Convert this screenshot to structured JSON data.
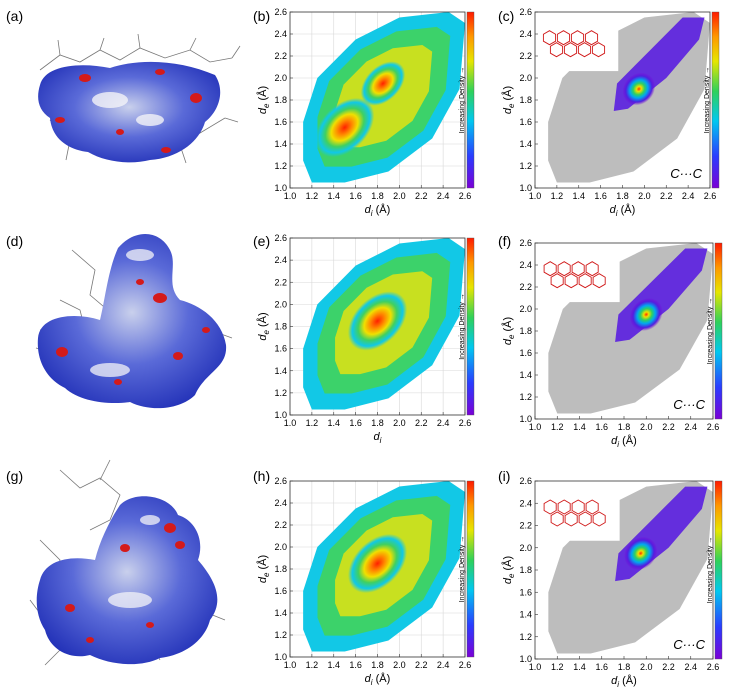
{
  "figure": {
    "panel_labels": [
      "(a)",
      "(b)",
      "(c)",
      "(d)",
      "(e)",
      "(f)",
      "(g)",
      "(h)",
      "(i)"
    ],
    "surface_panels": [
      {
        "label_index": 0,
        "name": "hirshfeld-surface-a"
      },
      {
        "label_index": 3,
        "name": "hirshfeld-surface-d"
      },
      {
        "label_index": 6,
        "name": "hirshfeld-surface-g"
      }
    ],
    "colors": {
      "surface_blue": "#2f3fd0",
      "surface_white": "#e8ecf4",
      "surface_red": "#d41a1a",
      "grey_background": "#bdbdbd",
      "molecule_red": "#d01818"
    }
  },
  "chart_data": [
    {
      "type": "heatmap",
      "panel": "(b)",
      "xlabel_main": "d",
      "xlabel_sub": "i",
      "xlabel_unit": " (Å)",
      "ylabel_main": "d",
      "ylabel_sub": "e",
      "ylabel_unit": " (Å)",
      "xlim": [
        1.0,
        2.6
      ],
      "ylim": [
        1.0,
        2.6
      ],
      "xticks": [
        "1.0",
        "1.2",
        "1.4",
        "1.6",
        "1.8",
        "2.0",
        "2.2",
        "2.4",
        "2.6"
      ],
      "yticks": [
        "1.0",
        "1.2",
        "1.4",
        "1.6",
        "1.8",
        "2.0",
        "2.2",
        "2.4",
        "2.6"
      ],
      "grid": true,
      "colorbar_label": "Increasing Density →",
      "density_peaks": [
        {
          "x": 1.5,
          "y": 1.55,
          "level": 1.0
        },
        {
          "x": 1.85,
          "y": 1.95,
          "level": 0.75
        }
      ],
      "highlight": null
    },
    {
      "type": "heatmap",
      "panel": "(c)",
      "xlabel_main": "d",
      "xlabel_sub": "i",
      "xlabel_unit": " (Å)",
      "ylabel_main": "d",
      "ylabel_sub": "e",
      "ylabel_unit": " (Å)",
      "xlim": [
        1.0,
        2.6
      ],
      "ylim": [
        1.0,
        2.6
      ],
      "xticks": [
        "1.0",
        "1.2",
        "1.4",
        "1.6",
        "1.8",
        "2.0",
        "2.2",
        "2.4",
        "2.6"
      ],
      "yticks": [
        "1.0",
        "1.2",
        "1.4",
        "1.6",
        "1.8",
        "2.0",
        "2.2",
        "2.4",
        "2.6"
      ],
      "grid": false,
      "colorbar_label": "Increasing Density →",
      "annotation": "C···C",
      "highlight": {
        "x": 1.95,
        "y": 1.9,
        "level": 1.0
      }
    },
    {
      "type": "heatmap",
      "panel": "(e)",
      "xlabel_main": "d",
      "xlabel_sub": "i",
      "xlabel_unit": "",
      "ylabel_main": "d",
      "ylabel_sub": "e",
      "ylabel_unit": " (Å)",
      "xlim": [
        1.0,
        2.6
      ],
      "ylim": [
        1.0,
        2.6
      ],
      "xticks": [
        "1.0",
        "1.2",
        "1.4",
        "1.6",
        "1.8",
        "2.0",
        "2.2",
        "2.4",
        "2.6"
      ],
      "yticks": [
        "1.0",
        "1.2",
        "1.4",
        "1.6",
        "1.8",
        "2.0",
        "2.2",
        "2.4",
        "2.6"
      ],
      "grid": true,
      "colorbar_label": "Increasing Density →",
      "density_peaks": [
        {
          "x": 1.8,
          "y": 1.85,
          "level": 1.0
        }
      ],
      "highlight": null
    },
    {
      "type": "heatmap",
      "panel": "(f)",
      "xlabel_main": "d",
      "xlabel_sub": "i",
      "xlabel_unit": " (Å)",
      "ylabel_main": "d",
      "ylabel_sub": "e",
      "ylabel_unit": " (Å)",
      "xlim": [
        1.0,
        2.6
      ],
      "ylim": [
        1.0,
        2.6
      ],
      "xticks": [
        "1.0",
        "1.2",
        "1.4",
        "1.6",
        "1.8",
        "2.0",
        "2.2",
        "2.4",
        "2.6"
      ],
      "yticks": [
        "1.0",
        "1.2",
        "1.4",
        "1.6",
        "1.8",
        "2.0",
        "2.2",
        "2.4",
        "2.6"
      ],
      "grid": false,
      "colorbar_label": "Increasing Density →",
      "annotation": "C···C",
      "highlight": {
        "x": 2.0,
        "y": 1.95,
        "level": 1.0
      }
    },
    {
      "type": "heatmap",
      "panel": "(h)",
      "xlabel_main": "d",
      "xlabel_sub": "i",
      "xlabel_unit": " (Å)",
      "ylabel_main": "d",
      "ylabel_sub": "e",
      "ylabel_unit": " (Å)",
      "xlim": [
        1.0,
        2.6
      ],
      "ylim": [
        1.0,
        2.6
      ],
      "xticks": [
        "1.0",
        "1.2",
        "1.4",
        "1.6",
        "1.8",
        "2.0",
        "2.2",
        "2.4",
        "2.6"
      ],
      "yticks": [
        "1.0",
        "1.2",
        "1.4",
        "1.6",
        "1.8",
        "2.0",
        "2.2",
        "2.4",
        "2.6"
      ],
      "grid": true,
      "colorbar_label": "Increasing Density →",
      "density_peaks": [
        {
          "x": 1.8,
          "y": 1.85,
          "level": 1.0
        }
      ],
      "highlight": null
    },
    {
      "type": "heatmap",
      "panel": "(i)",
      "xlabel_main": "d",
      "xlabel_sub": "i",
      "xlabel_unit": " (Å)",
      "ylabel_main": "d",
      "ylabel_sub": "e",
      "ylabel_unit": " (Å)",
      "xlim": [
        1.0,
        2.6
      ],
      "ylim": [
        1.0,
        2.6
      ],
      "xticks": [
        "1.0",
        "1.2",
        "1.4",
        "1.6",
        "1.8",
        "2.0",
        "2.2",
        "2.4",
        "2.6"
      ],
      "yticks": [
        "1.0",
        "1.2",
        "1.4",
        "1.6",
        "1.8",
        "2.0",
        "2.2",
        "2.4",
        "2.6"
      ],
      "grid": false,
      "colorbar_label": "Increasing Density →",
      "annotation": "C···C",
      "highlight": {
        "x": 1.95,
        "y": 1.95,
        "level": 1.0
      }
    }
  ]
}
